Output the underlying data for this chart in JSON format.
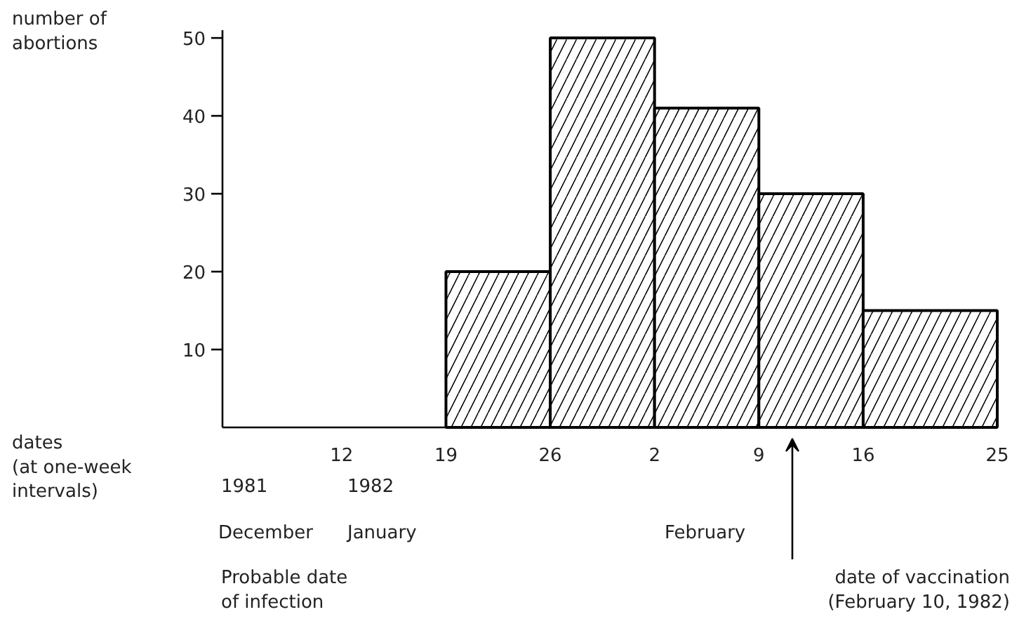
{
  "chart_data": {
    "type": "histogram",
    "ylabel": "number of abortions",
    "xlabel": "dates (at one-week intervals)",
    "bins": [
      "1982-01-19",
      "1982-01-26",
      "1982-02-02",
      "1982-02-09",
      "1982-02-16",
      "1982-02-25"
    ],
    "values": [
      20,
      50,
      41,
      30,
      15
    ],
    "color": "#000000",
    "xlim": [
      "1982-01-04",
      "1982-02-25"
    ],
    "xticks": [
      {
        "value": "1982-01-12",
        "label": "12"
      },
      {
        "value": "1982-01-19",
        "label": "19"
      },
      {
        "value": "1982-01-26",
        "label": "26"
      },
      {
        "value": "1982-02-02",
        "label": "2"
      },
      {
        "value": "1982-02-09",
        "label": "9"
      },
      {
        "value": "1982-02-16",
        "label": "16"
      },
      {
        "value": "1982-02-25",
        "label": "25"
      }
    ],
    "ylim": [
      0,
      51
    ],
    "yticks": [
      10,
      20,
      30,
      40,
      50
    ],
    "grid": false,
    "annotations": [
      "1981",
      "1982",
      "December",
      "January",
      "February",
      "Probable date of infection",
      "date of vaccination (February 10, 1982)"
    ]
  }
}
